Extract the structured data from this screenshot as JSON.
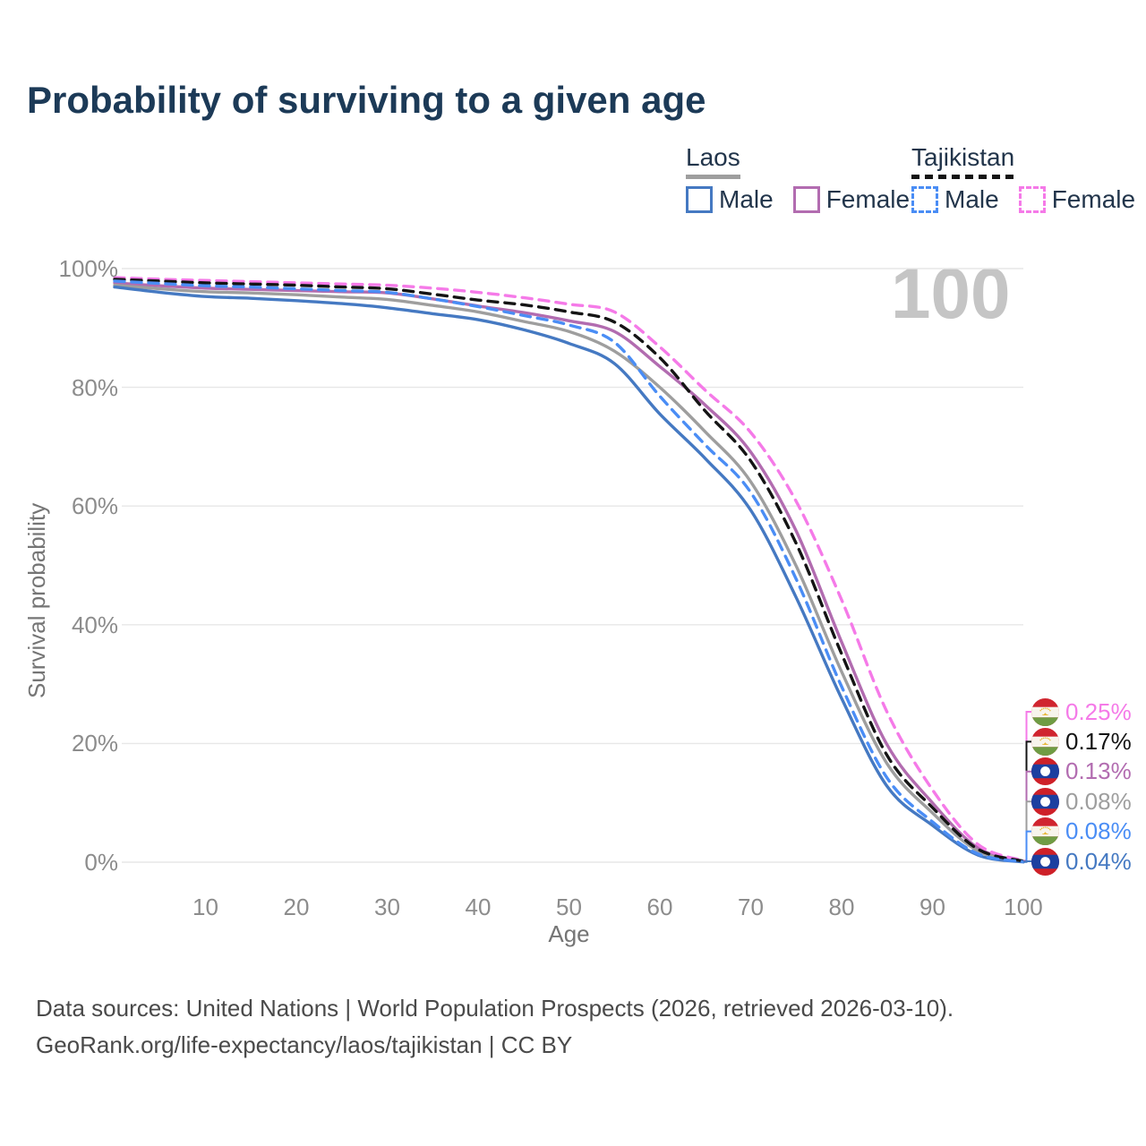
{
  "title": "Probability of surviving to a given age",
  "watermark": "100",
  "legend": {
    "groups": [
      {
        "country": "Laos",
        "underline_dashed": false,
        "underline_color": "#9e9e9e",
        "items": [
          {
            "label": "Male",
            "color": "#4579c2",
            "dashed": false
          },
          {
            "label": "Female",
            "color": "#b26cb0",
            "dashed": false
          }
        ]
      },
      {
        "country": "Tajikistan",
        "underline_dashed": true,
        "underline_color": "#141414",
        "items": [
          {
            "label": "Male",
            "color": "#4a8df5",
            "dashed": true
          },
          {
            "label": "Female",
            "color": "#f57ae8",
            "dashed": true
          }
        ]
      }
    ]
  },
  "chart_data": {
    "type": "line",
    "title": "Probability of surviving to a given age",
    "xlabel": "Age",
    "ylabel": "Survival probability",
    "xlim": [
      0,
      100
    ],
    "ylim": [
      0,
      100
    ],
    "x_ticks": [
      10,
      20,
      30,
      40,
      50,
      60,
      70,
      80,
      90,
      100
    ],
    "y_ticks": [
      0,
      20,
      40,
      60,
      80,
      100
    ],
    "y_tick_suffix": "%",
    "grid": "horizontal",
    "legend_position": "top-right",
    "x": [
      0,
      5,
      10,
      15,
      20,
      25,
      30,
      35,
      40,
      45,
      50,
      55,
      60,
      65,
      70,
      75,
      80,
      85,
      90,
      95,
      100
    ],
    "series": [
      {
        "name": "Tajikistan Female",
        "country": "Tajikistan",
        "sex": "Female",
        "color": "#f57ae8",
        "dashed": true,
        "flag": "tajikistan",
        "end_label": "0.25%",
        "values": [
          98.5,
          98.2,
          98.0,
          97.8,
          97.6,
          97.4,
          97.2,
          96.7,
          96.0,
          95.1,
          94.0,
          92.7,
          86.8,
          79.5,
          72.4,
          60.8,
          44.2,
          25.3,
          12.2,
          3.0,
          0.25
        ]
      },
      {
        "name": "Tajikistan",
        "country": "Tajikistan",
        "sex": "All",
        "color": "#141414",
        "dashed": true,
        "flag": "tajikistan",
        "end_label": "0.17%",
        "values": [
          98.2,
          97.9,
          97.6,
          97.4,
          97.2,
          96.9,
          96.6,
          95.7,
          94.7,
          93.9,
          92.7,
          91.0,
          85.0,
          76.0,
          67.6,
          53.7,
          35.1,
          18.0,
          9.2,
          2.2,
          0.17
        ]
      },
      {
        "name": "Laos Female",
        "country": "Laos",
        "sex": "Female",
        "color": "#b26cb0",
        "dashed": false,
        "flag": "laos",
        "end_label": "0.13%",
        "values": [
          97.6,
          97.1,
          96.7,
          96.5,
          96.3,
          96.1,
          95.9,
          94.9,
          93.7,
          92.6,
          91.2,
          89.4,
          83.5,
          77.0,
          69.1,
          55.8,
          37.1,
          19.8,
          10.0,
          2.4,
          0.13
        ]
      },
      {
        "name": "Laos",
        "country": "Laos",
        "sex": "All",
        "color": "#9e9e9e",
        "dashed": false,
        "flag": "laos",
        "end_label": "0.08%",
        "values": [
          97.2,
          96.6,
          96.1,
          95.9,
          95.6,
          95.2,
          94.8,
          93.8,
          92.7,
          91.1,
          89.4,
          86.1,
          80.0,
          72.5,
          64.1,
          49.9,
          32.1,
          16.6,
          8.3,
          1.9,
          0.08
        ]
      },
      {
        "name": "Tajikistan Male",
        "country": "Tajikistan",
        "sex": "Male",
        "color": "#4a8df5",
        "dashed": true,
        "flag": "tajikistan",
        "end_label": "0.08%",
        "values": [
          97.9,
          97.5,
          97.1,
          96.9,
          96.6,
          96.3,
          96.0,
          94.9,
          93.6,
          92.1,
          90.5,
          87.6,
          78.5,
          70.3,
          62.3,
          47.7,
          29.6,
          14.2,
          6.8,
          1.4,
          0.08
        ]
      },
      {
        "name": "Laos Male",
        "country": "Laos",
        "sex": "Male",
        "color": "#4579c2",
        "dashed": false,
        "flag": "laos",
        "end_label": "0.04%",
        "values": [
          96.9,
          96.0,
          95.3,
          95.0,
          94.6,
          94.1,
          93.4,
          92.4,
          91.4,
          89.7,
          87.4,
          84.0,
          75.5,
          68.0,
          59.3,
          44.6,
          27.6,
          12.8,
          6.2,
          1.2,
          0.04
        ]
      }
    ]
  },
  "footer": {
    "line1": "Data sources: United Nations | World Population Prospects (2026, retrieved 2026-03-10).",
    "line2": "GeoRank.org/life-expectancy/laos/tajikistan | CC BY"
  }
}
